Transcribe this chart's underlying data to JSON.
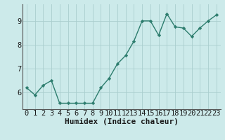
{
  "x": [
    0,
    1,
    2,
    3,
    4,
    5,
    6,
    7,
    8,
    9,
    10,
    11,
    12,
    13,
    14,
    15,
    16,
    17,
    18,
    19,
    20,
    21,
    22,
    23
  ],
  "y": [
    6.2,
    5.9,
    6.3,
    6.5,
    5.55,
    5.55,
    5.55,
    5.55,
    5.55,
    6.2,
    6.6,
    7.2,
    7.55,
    8.15,
    9.0,
    9.0,
    8.4,
    9.3,
    8.75,
    8.7,
    8.35,
    8.7,
    9.0,
    9.25
  ],
  "xlabel": "Humidex (Indice chaleur)",
  "xlim": [
    -0.5,
    23.5
  ],
  "ylim": [
    5.3,
    9.7
  ],
  "yticks": [
    6,
    7,
    8,
    9
  ],
  "xticks": [
    0,
    1,
    2,
    3,
    4,
    5,
    6,
    7,
    8,
    9,
    10,
    11,
    12,
    13,
    14,
    15,
    16,
    17,
    18,
    19,
    20,
    21,
    22,
    23
  ],
  "line_color": "#2d7d6e",
  "marker_color": "#2d7d6e",
  "bg_color": "#cceaea",
  "grid_color": "#aacece",
  "tick_label_fontsize": 7.5,
  "xlabel_fontsize": 8
}
